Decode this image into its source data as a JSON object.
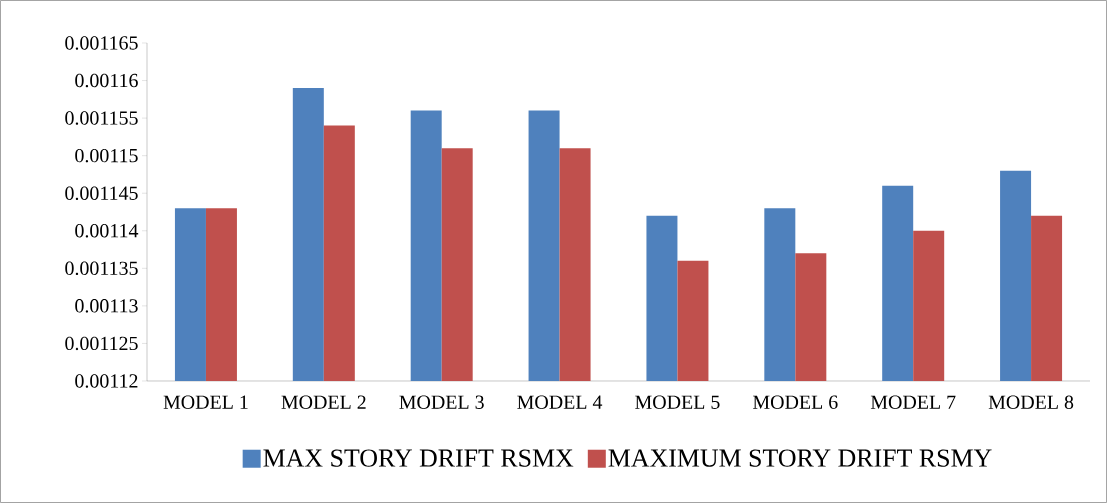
{
  "chart_data": {
    "type": "bar",
    "categories": [
      "MODEL 1",
      "MODEL 2",
      "MODEL 3",
      "MODEL 4",
      "MODEL 5",
      "MODEL 6",
      "MODEL 7",
      "MODEL 8"
    ],
    "series": [
      {
        "name": "MAX STORY DRIFT RSMX",
        "color": "#4f81bd",
        "values": [
          0.001143,
          0.001159,
          0.001156,
          0.001156,
          0.001142,
          0.001143,
          0.001146,
          0.001148
        ]
      },
      {
        "name": "MAXIMUM STORY DRIFT RSMY",
        "color": "#c0504d",
        "values": [
          0.001143,
          0.001154,
          0.001151,
          0.001151,
          0.001136,
          0.001137,
          0.00114,
          0.001142
        ]
      }
    ],
    "ylim": [
      0.00112,
      0.001165
    ],
    "yticks": [
      0.00112,
      0.001125,
      0.00113,
      0.001135,
      0.00114,
      0.001145,
      0.00115,
      0.001155,
      0.00116,
      0.001165
    ],
    "legend": "bottom"
  }
}
